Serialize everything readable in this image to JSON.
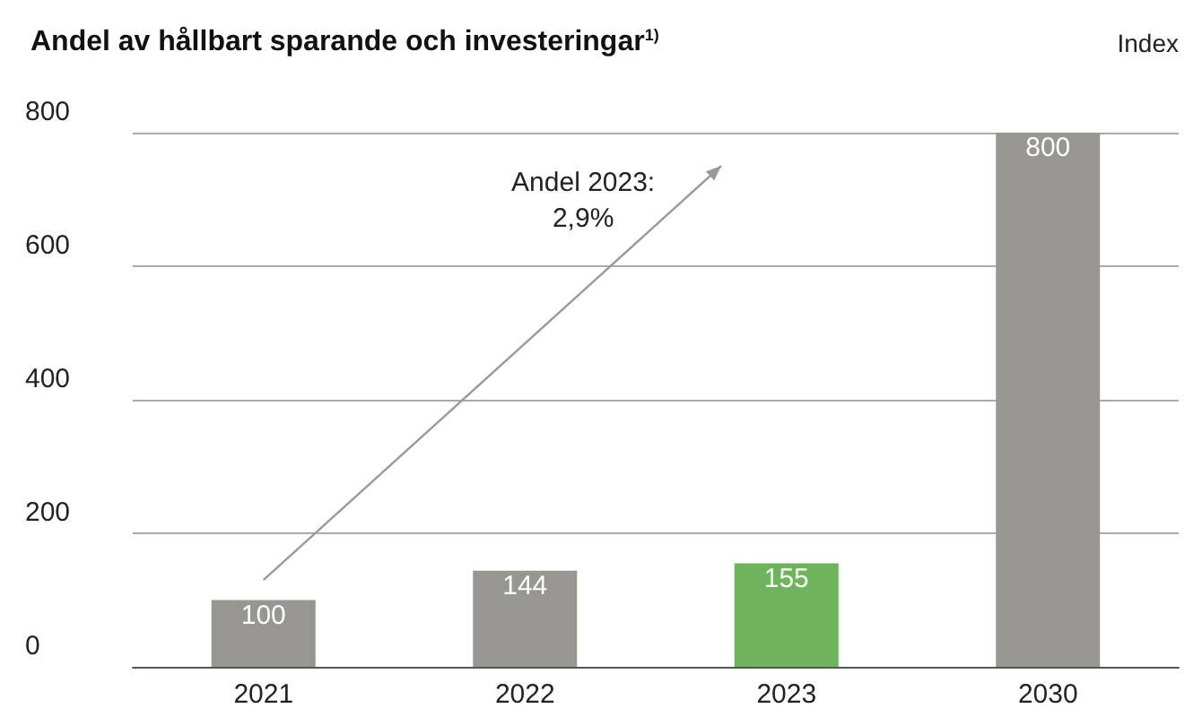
{
  "chart_data": {
    "type": "bar",
    "title": "Andel av hållbart sparande och investeringar$^{1)}$",
    "ylabel": "Index",
    "categories": [
      "2021",
      "2022",
      "2023",
      "2030"
    ],
    "values": [
      100,
      144,
      155,
      800
    ],
    "colors": [
      "#979690",
      "#979690",
      "#6db45a",
      "#979690"
    ],
    "ylim": [
      0,
      800
    ],
    "yticks": [
      0,
      200,
      400,
      600,
      800
    ],
    "grid": "y",
    "data_labels": true,
    "annotations": [
      "Andel 2023:\n2,9%"
    ]
  }
}
